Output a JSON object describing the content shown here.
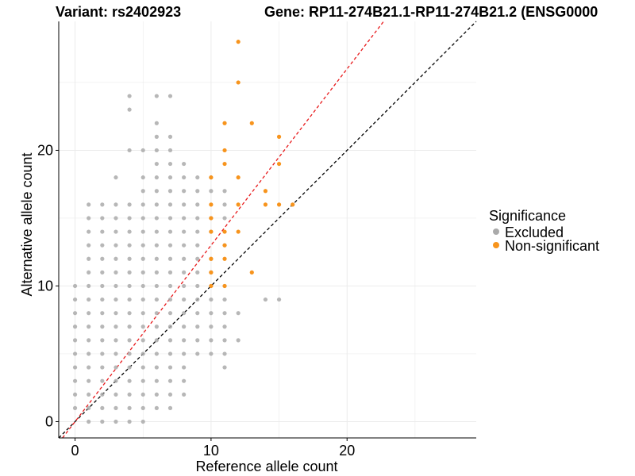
{
  "chart_data": {
    "type": "scatter",
    "title_left": "Variant: rs2402923",
    "title_right": "Gene: RP11-274B21.1-RP11-274B21.2 (ENSG0000",
    "xlabel": "Reference allele count",
    "ylabel": "Alternative allele count",
    "xlim": [
      -1.2,
      29.5
    ],
    "ylim": [
      -1.2,
      29.5
    ],
    "x_ticks": [
      0,
      10,
      20
    ],
    "y_ticks": [
      0,
      10,
      20
    ],
    "grid": true,
    "legend": {
      "title": "Significance",
      "position": "right",
      "entries": [
        {
          "name": "Excluded",
          "color": "#aaaaaa"
        },
        {
          "name": "Non-significant",
          "color": "#f7941d"
        }
      ]
    },
    "reference_lines": [
      {
        "name": "identity",
        "slope": 1,
        "intercept": 0,
        "color": "#000000",
        "style": "dashed"
      },
      {
        "name": "fit",
        "slope": 1.3,
        "intercept": 0,
        "color": "#e8191b",
        "style": "dashed"
      }
    ],
    "series": [
      {
        "name": "Excluded",
        "color": "#aaaaaa",
        "points": [
          [
            0,
            10
          ],
          [
            0,
            9
          ],
          [
            0,
            8
          ],
          [
            0,
            7
          ],
          [
            0,
            6
          ],
          [
            0,
            5
          ],
          [
            0,
            4
          ],
          [
            0,
            3
          ],
          [
            0,
            2
          ],
          [
            0,
            1
          ],
          [
            1,
            16
          ],
          [
            1,
            15
          ],
          [
            1,
            14
          ],
          [
            1,
            13
          ],
          [
            1,
            12
          ],
          [
            1,
            11
          ],
          [
            1,
            10
          ],
          [
            1,
            9
          ],
          [
            1,
            8
          ],
          [
            1,
            7
          ],
          [
            1,
            6
          ],
          [
            1,
            5
          ],
          [
            1,
            4
          ],
          [
            1,
            3
          ],
          [
            1,
            2
          ],
          [
            1,
            1
          ],
          [
            1,
            0
          ],
          [
            2,
            16
          ],
          [
            2,
            15
          ],
          [
            2,
            14
          ],
          [
            2,
            13
          ],
          [
            2,
            12
          ],
          [
            2,
            11
          ],
          [
            2,
            10
          ],
          [
            2,
            9
          ],
          [
            2,
            8
          ],
          [
            2,
            7
          ],
          [
            2,
            6
          ],
          [
            2,
            5
          ],
          [
            2,
            4
          ],
          [
            2,
            3
          ],
          [
            2,
            2
          ],
          [
            2,
            1
          ],
          [
            2,
            0
          ],
          [
            3,
            18
          ],
          [
            3,
            16
          ],
          [
            3,
            15
          ],
          [
            3,
            14
          ],
          [
            3,
            13
          ],
          [
            3,
            12
          ],
          [
            3,
            11
          ],
          [
            3,
            10
          ],
          [
            3,
            9
          ],
          [
            3,
            8
          ],
          [
            3,
            7
          ],
          [
            3,
            6
          ],
          [
            3,
            5
          ],
          [
            3,
            4
          ],
          [
            3,
            3
          ],
          [
            3,
            2
          ],
          [
            3,
            1
          ],
          [
            3,
            0
          ],
          [
            4,
            24
          ],
          [
            4,
            23
          ],
          [
            4,
            20
          ],
          [
            4,
            16
          ],
          [
            4,
            15
          ],
          [
            4,
            14
          ],
          [
            4,
            13
          ],
          [
            4,
            12
          ],
          [
            4,
            11
          ],
          [
            4,
            10
          ],
          [
            4,
            9
          ],
          [
            4,
            8
          ],
          [
            4,
            7
          ],
          [
            4,
            6
          ],
          [
            4,
            5
          ],
          [
            4,
            4
          ],
          [
            4,
            3
          ],
          [
            4,
            2
          ],
          [
            4,
            1
          ],
          [
            4,
            0
          ],
          [
            5,
            20
          ],
          [
            5,
            18
          ],
          [
            5,
            17
          ],
          [
            5,
            16
          ],
          [
            5,
            15
          ],
          [
            5,
            14
          ],
          [
            5,
            13
          ],
          [
            5,
            12
          ],
          [
            5,
            11
          ],
          [
            5,
            10
          ],
          [
            5,
            9
          ],
          [
            5,
            8
          ],
          [
            5,
            7
          ],
          [
            5,
            6
          ],
          [
            5,
            5
          ],
          [
            5,
            4
          ],
          [
            5,
            3
          ],
          [
            5,
            2
          ],
          [
            5,
            1
          ],
          [
            5,
            0
          ],
          [
            6,
            24
          ],
          [
            6,
            22
          ],
          [
            6,
            21
          ],
          [
            6,
            20
          ],
          [
            6,
            19
          ],
          [
            6,
            18
          ],
          [
            6,
            17
          ],
          [
            6,
            16
          ],
          [
            6,
            15
          ],
          [
            6,
            14
          ],
          [
            6,
            13
          ],
          [
            6,
            12
          ],
          [
            6,
            11
          ],
          [
            6,
            10
          ],
          [
            6,
            9
          ],
          [
            6,
            8
          ],
          [
            6,
            7
          ],
          [
            6,
            6
          ],
          [
            6,
            5
          ],
          [
            6,
            4
          ],
          [
            6,
            3
          ],
          [
            6,
            2
          ],
          [
            6,
            1
          ],
          [
            7,
            24
          ],
          [
            7,
            21
          ],
          [
            7,
            20
          ],
          [
            7,
            19
          ],
          [
            7,
            18
          ],
          [
            7,
            17
          ],
          [
            7,
            16
          ],
          [
            7,
            15
          ],
          [
            7,
            14
          ],
          [
            7,
            13
          ],
          [
            7,
            12
          ],
          [
            7,
            11
          ],
          [
            7,
            10
          ],
          [
            7,
            9
          ],
          [
            7,
            8
          ],
          [
            7,
            7
          ],
          [
            7,
            6
          ],
          [
            7,
            5
          ],
          [
            7,
            4
          ],
          [
            7,
            3
          ],
          [
            7,
            2
          ],
          [
            7,
            1
          ],
          [
            8,
            19
          ],
          [
            8,
            18
          ],
          [
            8,
            17
          ],
          [
            8,
            16
          ],
          [
            8,
            15
          ],
          [
            8,
            14
          ],
          [
            8,
            13
          ],
          [
            8,
            12
          ],
          [
            8,
            11
          ],
          [
            8,
            10
          ],
          [
            8,
            9
          ],
          [
            8,
            8
          ],
          [
            8,
            7
          ],
          [
            8,
            6
          ],
          [
            8,
            5
          ],
          [
            8,
            4
          ],
          [
            8,
            3
          ],
          [
            8,
            2
          ],
          [
            9,
            18
          ],
          [
            9,
            17
          ],
          [
            9,
            16
          ],
          [
            9,
            15
          ],
          [
            9,
            14
          ],
          [
            9,
            13
          ],
          [
            9,
            12
          ],
          [
            9,
            11
          ],
          [
            9,
            10
          ],
          [
            9,
            9
          ],
          [
            9,
            8
          ],
          [
            9,
            7
          ],
          [
            9,
            6
          ],
          [
            9,
            5
          ],
          [
            10,
            18
          ],
          [
            10,
            17
          ],
          [
            10,
            15
          ],
          [
            10,
            14
          ],
          [
            10,
            12
          ],
          [
            10,
            11
          ],
          [
            10,
            9
          ],
          [
            10,
            8
          ],
          [
            10,
            7
          ],
          [
            10,
            6
          ],
          [
            10,
            5
          ],
          [
            11,
            17
          ],
          [
            11,
            16
          ],
          [
            11,
            15
          ],
          [
            11,
            13
          ],
          [
            11,
            10
          ],
          [
            11,
            9
          ],
          [
            11,
            8
          ],
          [
            11,
            7
          ],
          [
            11,
            6
          ],
          [
            11,
            5
          ],
          [
            11,
            4
          ],
          [
            12,
            8
          ],
          [
            12,
            6
          ],
          [
            14,
            9
          ],
          [
            15,
            9
          ]
        ]
      },
      {
        "name": "Non-significant",
        "color": "#f7941d",
        "points": [
          [
            12,
            28
          ],
          [
            12,
            25
          ],
          [
            11,
            22
          ],
          [
            13,
            22
          ],
          [
            15,
            21
          ],
          [
            11,
            20
          ],
          [
            11,
            19
          ],
          [
            15,
            19
          ],
          [
            10,
            18
          ],
          [
            12,
            18
          ],
          [
            14,
            17
          ],
          [
            10,
            16
          ],
          [
            12,
            16
          ],
          [
            14,
            16
          ],
          [
            15,
            16
          ],
          [
            16,
            16
          ],
          [
            10,
            15
          ],
          [
            10,
            14
          ],
          [
            11,
            14
          ],
          [
            12,
            14
          ],
          [
            11,
            13
          ],
          [
            10,
            12
          ],
          [
            11,
            12
          ],
          [
            10,
            11
          ],
          [
            13,
            11
          ],
          [
            10,
            10
          ],
          [
            11,
            10
          ]
        ]
      }
    ]
  }
}
